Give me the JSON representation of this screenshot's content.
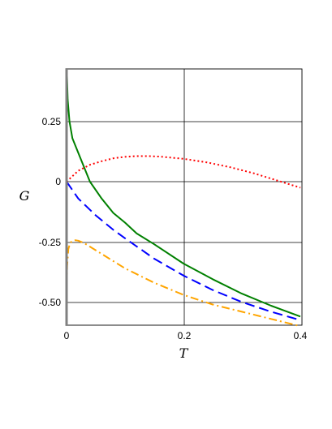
{
  "chart_data": {
    "type": "line",
    "title": "",
    "xlabel": "T",
    "ylabel": "G",
    "xlim": [
      0,
      0.4
    ],
    "ylim": [
      -0.6,
      0.46
    ],
    "grid": true,
    "legend": "none",
    "x_ticks": [
      {
        "value": 0,
        "label": "0"
      },
      {
        "value": 0.2,
        "label": "0.2"
      },
      {
        "value": 0.4,
        "label": "0.4"
      }
    ],
    "y_ticks": [
      {
        "value": 0.25,
        "label": "0.25"
      },
      {
        "value": 0,
        "label": "0"
      },
      {
        "value": -0.25,
        "label": "-0.25"
      },
      {
        "value": -0.5,
        "label": "-0.50"
      }
    ],
    "series": [
      {
        "color": "#008000",
        "dash": "solid",
        "x": [
          0.0005,
          0.002,
          0.005,
          0.01,
          0.02,
          0.04,
          0.06,
          0.08,
          0.1,
          0.12,
          0.15,
          0.2,
          0.25,
          0.3,
          0.35,
          0.4
        ],
        "y": [
          0.45,
          0.34,
          0.25,
          0.18,
          0.12,
          0.0,
          -0.07,
          -0.13,
          -0.17,
          -0.215,
          -0.26,
          -0.34,
          -0.405,
          -0.465,
          -0.515,
          -0.56
        ]
      },
      {
        "color": "#ff0000",
        "dash": "dotted",
        "x": [
          0.0,
          0.02,
          0.04,
          0.06,
          0.08,
          0.1,
          0.12,
          0.14,
          0.16,
          0.2,
          0.24,
          0.28,
          0.32,
          0.36,
          0.4
        ],
        "y": [
          0.0,
          0.045,
          0.07,
          0.085,
          0.097,
          0.103,
          0.106,
          0.106,
          0.104,
          0.095,
          0.08,
          0.06,
          0.035,
          0.005,
          -0.025
        ]
      },
      {
        "color": "#0000ff",
        "dash": "dashed",
        "x": [
          0.0,
          0.02,
          0.05,
          0.08,
          0.1,
          0.15,
          0.2,
          0.25,
          0.3,
          0.35,
          0.4
        ],
        "y": [
          0.0,
          -0.07,
          -0.14,
          -0.2,
          -0.235,
          -0.32,
          -0.39,
          -0.45,
          -0.5,
          -0.54,
          -0.575
        ]
      },
      {
        "color": "#ffa500",
        "dash": "dashdot",
        "x": [
          0.0,
          0.001,
          0.003,
          0.006,
          0.01,
          0.015,
          0.02,
          0.03,
          0.05,
          0.08,
          0.1,
          0.15,
          0.2,
          0.25,
          0.3,
          0.35,
          0.4
        ],
        "y": [
          -0.5,
          -0.35,
          -0.28,
          -0.255,
          -0.245,
          -0.243,
          -0.245,
          -0.255,
          -0.285,
          -0.33,
          -0.36,
          -0.42,
          -0.47,
          -0.51,
          -0.54,
          -0.57,
          -0.6
        ]
      }
    ]
  }
}
